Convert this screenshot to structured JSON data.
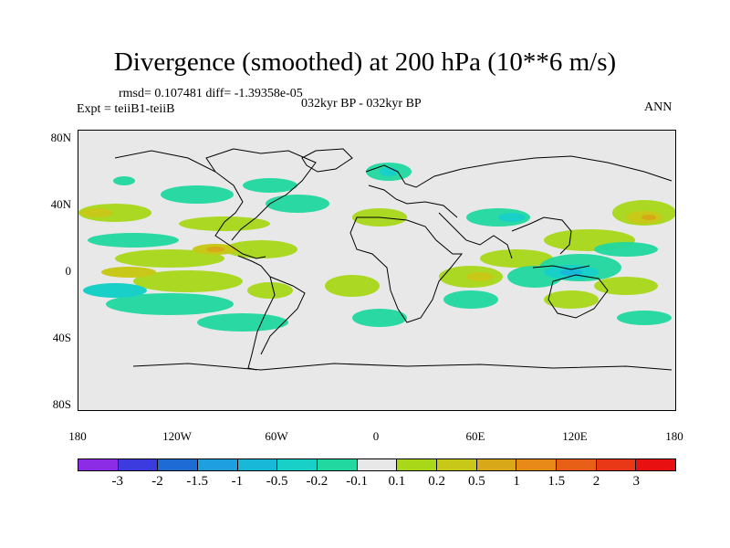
{
  "title": "Divergence (smoothed) at 200 hPa (10**6 m/s)",
  "stats": "rmsd= 0.107481 diff= -1.39358e-05",
  "expt": "Expt = teiiB1-teiiB",
  "period": "032kyr BP - 032kyr BP",
  "season": "ANN",
  "lat_labels": [
    "80N",
    "40N",
    "0",
    "40S",
    "80S"
  ],
  "lon_labels": [
    "180",
    "120W",
    "60W",
    "0",
    "60E",
    "120E",
    "180"
  ],
  "colorbar": {
    "labels": [
      "-3",
      "-2",
      "-1.5",
      "-1",
      "-0.5",
      "-0.2",
      "-0.1",
      "0.1",
      "0.2",
      "0.5",
      "1",
      "1.5",
      "2",
      "3"
    ],
    "colors": [
      "#8c2ce6",
      "#3b3be0",
      "#1e6bd6",
      "#1ea0e0",
      "#18b8d8",
      "#18d0c8",
      "#20d8a0",
      "#e8e8e8",
      "#a8d818",
      "#c8c818",
      "#d8a818",
      "#e88a18",
      "#e86018",
      "#e83818",
      "#e81010"
    ]
  }
}
